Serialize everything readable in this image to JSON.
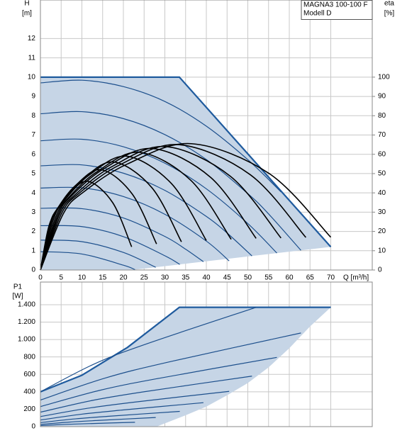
{
  "chart_data": [
    {
      "type": "line",
      "y_label": "H",
      "y_unit": "[m]",
      "y2_label": "eta",
      "y2_unit": "[%]",
      "x_label": "Q [m³/h]",
      "annotation": [
        "MAGNA3 100-100 F",
        "Modell D"
      ],
      "xlim": [
        0,
        80
      ],
      "xticks": [
        0,
        5,
        10,
        15,
        20,
        25,
        30,
        35,
        40,
        45,
        50,
        55,
        60,
        65,
        70
      ],
      "ylim": [
        0,
        14
      ],
      "yticks": [
        0,
        1,
        2,
        3,
        4,
        5,
        6,
        7,
        8,
        9,
        10,
        11,
        12
      ],
      "y2lim": [
        0,
        140
      ],
      "y2ticks": [
        0,
        10,
        20,
        30,
        40,
        50,
        60,
        70,
        80,
        90,
        100
      ],
      "grid": true,
      "area": {
        "color": "#c6d5e6",
        "line_color": "#1f5b9e",
        "upper": {
          "x": [
            0,
            33.5,
            70
          ],
          "values": [
            10,
            10,
            1.2
          ]
        },
        "lower": {
          "x": [
            0,
            22,
            70
          ],
          "values": [
            0,
            0,
            1.2
          ]
        }
      },
      "series": [
        {
          "color": "#1c4f8c",
          "x": [
            0,
            10,
            20,
            30,
            40,
            50,
            58
          ],
          "values": [
            9.7,
            9.84,
            9.51,
            8.74,
            7.46,
            5.72,
            4.05
          ]
        },
        {
          "color": "#1c4f8c",
          "x": [
            0,
            10,
            20,
            30,
            40,
            50,
            55,
            62.8
          ],
          "values": [
            8.1,
            8.21,
            7.85,
            7.02,
            5.73,
            3.96,
            2.91,
            1.02
          ]
        },
        {
          "color": "#1c4f8c",
          "x": [
            0,
            10,
            20,
            30,
            40,
            50,
            57
          ],
          "values": [
            6.7,
            6.78,
            6.39,
            5.54,
            4.21,
            2.41,
            0.88
          ]
        },
        {
          "color": "#1c4f8c",
          "x": [
            0,
            10,
            20,
            30,
            40,
            45,
            51
          ],
          "values": [
            5.4,
            5.45,
            5.02,
            4.13,
            2.78,
            1.92,
            0.73
          ]
        },
        {
          "color": "#1c4f8c",
          "x": [
            0,
            10,
            20,
            30,
            40,
            45.5
          ],
          "values": [
            4.25,
            4.26,
            3.81,
            2.89,
            1.5,
            0.47
          ]
        },
        {
          "color": "#1c4f8c",
          "x": [
            0,
            10,
            20,
            30,
            35,
            39.3
          ],
          "values": [
            3.2,
            3.18,
            2.7,
            1.74,
            1.08,
            0.43
          ]
        },
        {
          "color": "#1c4f8c",
          "x": [
            0,
            10,
            20,
            30,
            33.6
          ],
          "values": [
            2.3,
            2.25,
            1.73,
            0.74,
            0.29
          ]
        },
        {
          "color": "#1c4f8c",
          "x": [
            0,
            10,
            20,
            27.8
          ],
          "values": [
            1.55,
            1.47,
            0.91,
            0.14
          ]
        },
        {
          "color": "#1c4f8c",
          "x": [
            0,
            10,
            20,
            22.8
          ],
          "values": [
            0.95,
            0.83,
            0.25,
            0.02
          ]
        },
        {
          "color": "#000000",
          "axis": "y2",
          "x": [
            0,
            1.8,
            3.3,
            6.6,
            11.4,
            17.4,
            22
          ],
          "values": [
            0,
            20.7,
            28.5,
            38.6,
            46,
            35,
            12
          ]
        },
        {
          "color": "#000000",
          "axis": "y2",
          "x": [
            0,
            2.2,
            4.2,
            8.4,
            14.6,
            22.1,
            28
          ],
          "values": [
            0,
            23.4,
            32.2,
            43.7,
            52,
            39.5,
            13.5
          ]
        },
        {
          "color": "#000000",
          "axis": "y2",
          "x": [
            0,
            2.7,
            5.1,
            10.2,
            17.7,
            26.9,
            34
          ],
          "values": [
            0,
            25.2,
            34.7,
            47,
            56,
            42.6,
            14.6
          ]
        },
        {
          "color": "#000000",
          "axis": "y2",
          "x": [
            0,
            3.2,
            6,
            12,
            20.8,
            31.6,
            40
          ],
          "values": [
            0,
            26.6,
            36.6,
            49.6,
            59,
            44.8,
            15.3
          ]
        },
        {
          "color": "#000000",
          "axis": "y2",
          "x": [
            0,
            3.7,
            6.9,
            13.8,
            23.9,
            36.3,
            46
          ],
          "values": [
            0,
            27.5,
            37.8,
            51.2,
            61,
            46.4,
            15.9
          ]
        },
        {
          "color": "#000000",
          "axis": "y2",
          "x": [
            0,
            4.2,
            7.8,
            15.6,
            27,
            41.1,
            52
          ],
          "values": [
            0,
            28.4,
            39.1,
            52.9,
            63,
            47.9,
            16.4
          ]
        },
        {
          "color": "#000000",
          "axis": "y2",
          "x": [
            0,
            4.6,
            8.7,
            17.4,
            30.2,
            45.8,
            58
          ],
          "values": [
            0,
            28.8,
            39.7,
            53.8,
            64,
            48.6,
            16.6
          ]
        },
        {
          "color": "#000000",
          "axis": "y2",
          "x": [
            0,
            5.1,
            9.6,
            19.2,
            33.3,
            50.6,
            64
          ],
          "values": [
            0,
            29.3,
            40.3,
            54.6,
            65,
            49.4,
            16.9
          ]
        },
        {
          "color": "#000000",
          "axis": "y2",
          "x": [
            0,
            5.6,
            10.5,
            21,
            36.4,
            55.3,
            70
          ],
          "values": [
            0,
            29.5,
            40.6,
            55,
            65.5,
            49.8,
            17
          ]
        }
      ]
    },
    {
      "type": "line",
      "y_label": "P1",
      "y_unit": "[W]",
      "xlim": [
        0,
        80
      ],
      "ylim": [
        0,
        1660
      ],
      "yticks": [
        0,
        200,
        400,
        600,
        800,
        {
          "value": 1000,
          "label": "1.000"
        },
        {
          "value": 1200,
          "label": "1.200"
        },
        {
          "value": 1400,
          "label": "1.400"
        }
      ],
      "grid": true,
      "area": {
        "color": "#c6d5e6",
        "line_color": "#1f5b9e",
        "upper": {
          "x": [
            0,
            10,
            21,
            33.5,
            70
          ],
          "values": [
            400,
            590,
            910,
            1370,
            1370
          ]
        },
        "lower": {
          "x": [
            0,
            28,
            35,
            40,
            45,
            50,
            55,
            60,
            65,
            70
          ],
          "values": [
            0,
            0,
            130,
            230,
            360,
            500,
            680,
            900,
            1150,
            1370
          ]
        }
      },
      "series": [
        {
          "color": "#1c4f8c",
          "x": [
            0,
            13,
            26,
            52
          ],
          "values": [
            400,
            720,
            957,
            1370
          ]
        },
        {
          "color": "#1c4f8c",
          "x": [
            0,
            15.7,
            31.4,
            62.8
          ],
          "values": [
            305,
            559,
            747,
            1075
          ]
        },
        {
          "color": "#1c4f8c",
          "x": [
            0,
            14.25,
            28.5,
            57
          ],
          "values": [
            230,
            416,
            554,
            795
          ]
        },
        {
          "color": "#1c4f8c",
          "x": [
            0,
            12.75,
            25.5,
            51
          ],
          "values": [
            166,
            303,
            404,
            580
          ]
        },
        {
          "color": "#1c4f8c",
          "x": [
            0,
            11.4,
            22.75,
            45.5
          ],
          "values": [
            116,
            211,
            282,
            405
          ]
        },
        {
          "color": "#1c4f8c",
          "x": [
            0,
            9.8,
            19.65,
            39.3
          ],
          "values": [
            76,
            142,
            190,
            275
          ]
        },
        {
          "color": "#1c4f8c",
          "x": [
            0,
            8.4,
            16.8,
            33.6
          ],
          "values": [
            46,
            89,
            120,
            175
          ]
        },
        {
          "color": "#1c4f8c",
          "x": [
            0,
            6.95,
            13.9,
            27.8
          ],
          "values": [
            26,
            52,
            71,
            105
          ]
        },
        {
          "color": "#1c4f8c",
          "x": [
            0,
            5.7,
            11.4,
            22.8
          ],
          "values": [
            12,
            25,
            34,
            50
          ]
        }
      ]
    }
  ]
}
